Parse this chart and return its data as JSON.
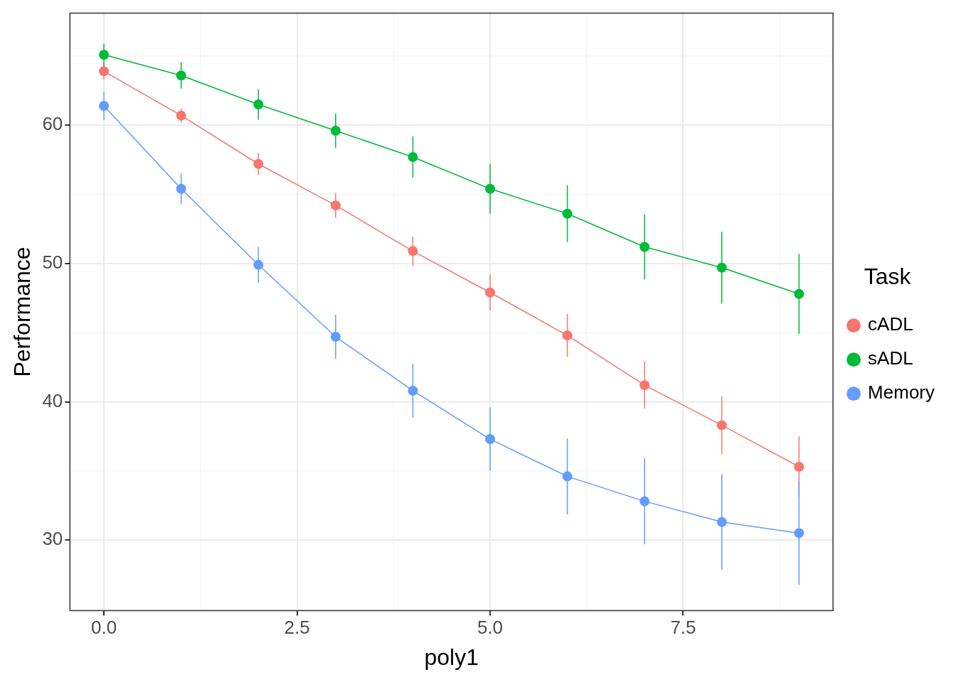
{
  "chart_data": {
    "type": "line",
    "xlabel": "poly1",
    "ylabel": "Performance",
    "legend_title": "Task",
    "legend": "right",
    "grid": true,
    "marker": "circle",
    "line_style": "solid",
    "x": [
      0,
      1,
      2,
      3,
      4,
      5,
      6,
      7,
      8,
      9
    ],
    "xlim": [
      -0.44,
      9.44
    ],
    "xticks": [
      {
        "value": 0,
        "label": "0.0"
      },
      {
        "value": 2.5,
        "label": "2.5"
      },
      {
        "value": 5,
        "label": "5.0"
      },
      {
        "value": 7.5,
        "label": "7.5"
      }
    ],
    "ylim": [
      24.9,
      68.1
    ],
    "yticks": [
      30,
      40,
      50,
      60
    ],
    "series": [
      {
        "name": "cADL",
        "color": "#f8766d",
        "values": [
          63.9,
          60.7,
          57.2,
          54.2,
          50.9,
          47.9,
          44.8,
          41.2,
          38.3,
          35.3
        ],
        "errors": [
          0.6,
          0.5,
          0.8,
          0.9,
          1.05,
          1.3,
          1.55,
          1.7,
          2.1,
          2.2
        ]
      },
      {
        "name": "sADL",
        "color": "#00ba38",
        "values": [
          65.1,
          63.6,
          61.5,
          59.6,
          57.7,
          55.4,
          53.6,
          51.2,
          49.7,
          47.8
        ],
        "errors": [
          0.8,
          0.95,
          1.1,
          1.25,
          1.5,
          1.8,
          2.05,
          2.35,
          2.6,
          2.9
        ]
      },
      {
        "name": "Memory",
        "color": "#619cff",
        "values": [
          61.4,
          55.4,
          49.9,
          44.7,
          40.8,
          37.3,
          34.6,
          32.8,
          31.3,
          30.5
        ],
        "errors": [
          1.0,
          1.1,
          1.3,
          1.6,
          1.95,
          2.3,
          2.75,
          3.1,
          3.45,
          3.75
        ]
      }
    ]
  }
}
